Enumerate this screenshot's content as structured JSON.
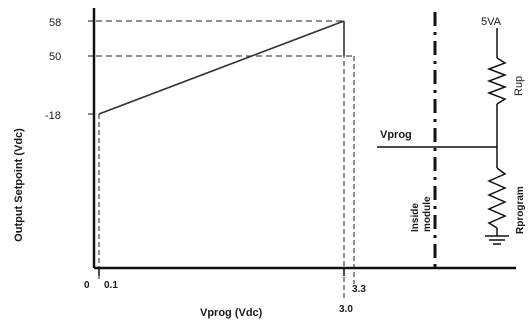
{
  "chart": {
    "y_axis_label": "Output Setpoint (Vdc)",
    "x_axis_label": "Vprog (Vdc)",
    "y_ticks": [
      "58",
      "50",
      "-18"
    ],
    "x_ticks": {
      "origin": "0",
      "low": "0.1",
      "high_a": "3.0",
      "high_b": "3.3"
    }
  },
  "chart_data": {
    "type": "line",
    "xlabel": "Vprog (Vdc)",
    "ylabel": "Output Setpoint (Vdc)",
    "series": [
      {
        "x": [
          0.1,
          3.0
        ],
        "y": [
          -18,
          58
        ]
      }
    ],
    "reference_points": [
      {
        "x": 0.1,
        "y": -18
      },
      {
        "x": 3.0,
        "y": 58
      },
      {
        "x": 3.3,
        "y": 50
      }
    ]
  },
  "circuit": {
    "supply_label": "5VA",
    "rup_label": "Rup",
    "vprog_label": "Vprog",
    "rprogram_label": "Rprogram",
    "inside_line1": "Inside",
    "inside_line2": "module"
  }
}
